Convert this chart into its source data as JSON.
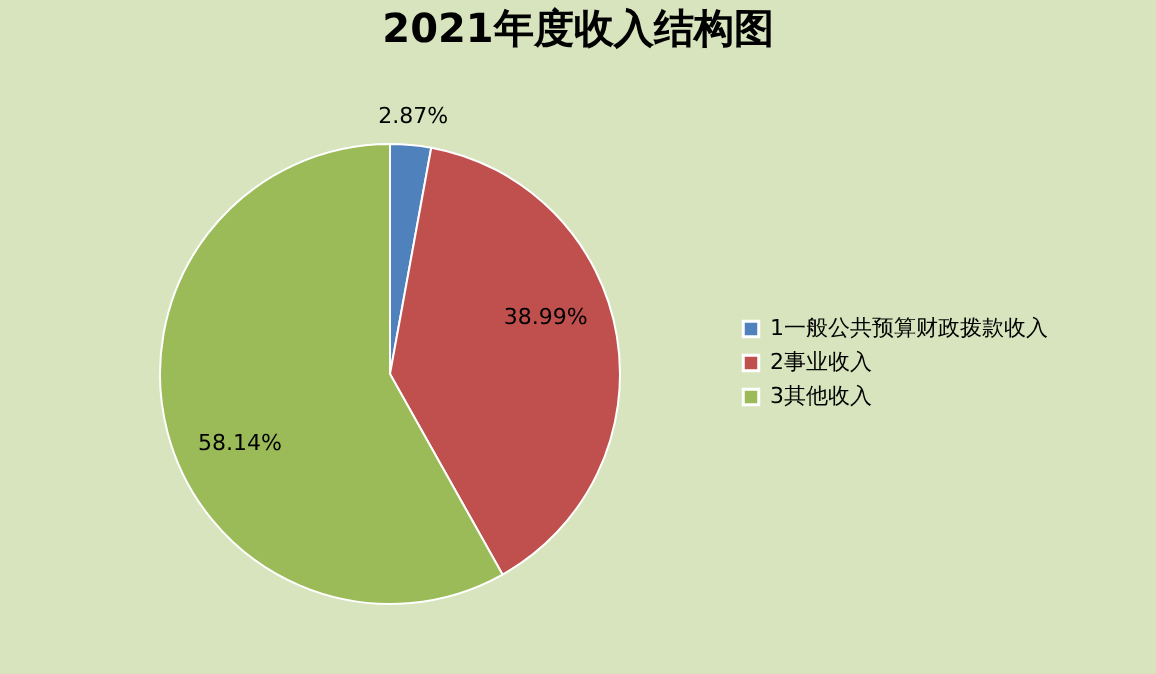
{
  "chart_data": {
    "type": "pie",
    "title": "2021年度收入结构图",
    "categories": [
      "1一般公共预算财政拨款收入",
      "2事业收入",
      "3其他收入"
    ],
    "values": [
      2.87,
      38.99,
      58.14
    ],
    "colors": [
      "#4f81bd",
      "#c0504d",
      "#9bbb59"
    ],
    "value_labels": [
      "2.87%",
      "38.99%",
      "58.14%"
    ],
    "legend": "right"
  }
}
